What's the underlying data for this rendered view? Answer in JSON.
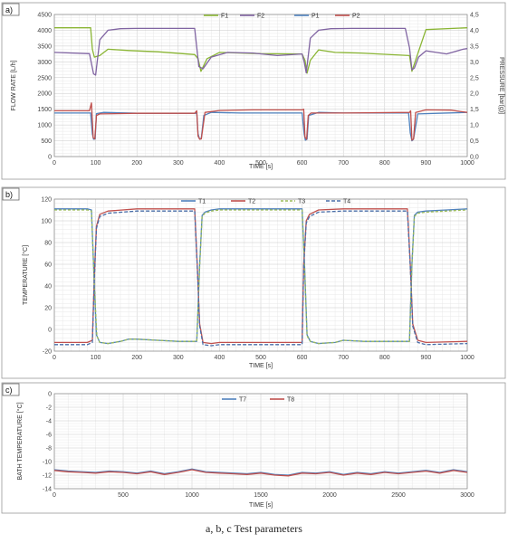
{
  "figure_caption": "a, b, c Test parameters",
  "chart_data": [
    {
      "panel_label": "a)",
      "type": "line",
      "xlabel": "TIME [s]",
      "ylabel": "FLOW RATE [L/h]",
      "y2label": "PRESSURE [bar(g)]",
      "xlim": [
        0,
        1000
      ],
      "ylim": [
        0,
        4500
      ],
      "y2lim": [
        0.0,
        4.5
      ],
      "xticks": [
        "0",
        "100",
        "200",
        "300",
        "400",
        "500",
        "600",
        "700",
        "800",
        "900",
        "1000"
      ],
      "yticks": [
        "0",
        "500",
        "1000",
        "1500",
        "2000",
        "2500",
        "3000",
        "3500",
        "4000",
        "4500"
      ],
      "y2ticks": [
        "0,0",
        "0,5",
        "1,0",
        "1,5",
        "2,0",
        "2,5",
        "3,0",
        "3,5",
        "4,0",
        "4,5"
      ],
      "grid": true,
      "legend_position": "top-center",
      "series": [
        {
          "name": "F1",
          "color": "#8ab534",
          "axis": "left",
          "x": [
            0,
            88,
            92,
            97,
            110,
            130,
            180,
            250,
            340,
            348,
            355,
            370,
            400,
            450,
            500,
            600,
            607,
            612,
            620,
            640,
            680,
            740,
            860,
            862,
            866,
            880,
            900,
            1000
          ],
          "y": [
            4080,
            4080,
            3400,
            3150,
            3200,
            3400,
            3360,
            3320,
            3230,
            3100,
            2700,
            3100,
            3300,
            3280,
            3260,
            3250,
            3050,
            2640,
            3050,
            3380,
            3300,
            3280,
            3200,
            3050,
            2700,
            3250,
            4020,
            4080
          ]
        },
        {
          "name": "F2",
          "color": "#8064a2",
          "axis": "left",
          "x": [
            0,
            85,
            90,
            95,
            100,
            110,
            130,
            160,
            200,
            340,
            345,
            350,
            360,
            380,
            420,
            480,
            540,
            600,
            605,
            610,
            620,
            640,
            670,
            720,
            800,
            850,
            860,
            866,
            872,
            882,
            900,
            950,
            990,
            1000
          ],
          "y": [
            3300,
            3260,
            2950,
            2620,
            2580,
            3700,
            4000,
            4050,
            4060,
            4060,
            3450,
            2850,
            2780,
            3150,
            3300,
            3280,
            3200,
            3250,
            3000,
            2650,
            3750,
            4000,
            4050,
            4060,
            4060,
            4060,
            3450,
            2750,
            2800,
            3150,
            3350,
            3250,
            3400,
            3420
          ]
        },
        {
          "name": "P1",
          "color": "#4f81bd",
          "axis": "right",
          "x": [
            0,
            88,
            92,
            95,
            99,
            102,
            120,
            200,
            345,
            348,
            352,
            356,
            362,
            380,
            450,
            600,
            605,
            608,
            612,
            616,
            640,
            700,
            858,
            862,
            866,
            870,
            880,
            1000
          ],
          "y": [
            1.38,
            1.38,
            0.72,
            0.55,
            0.56,
            1.36,
            1.4,
            1.37,
            1.37,
            0.72,
            0.55,
            0.58,
            1.3,
            1.4,
            1.38,
            1.38,
            0.72,
            0.52,
            0.55,
            1.3,
            1.4,
            1.38,
            1.38,
            0.75,
            0.5,
            0.55,
            1.35,
            1.4
          ]
        },
        {
          "name": "P2",
          "color": "#c0504d",
          "axis": "right",
          "x": [
            0,
            85,
            90,
            94,
            98,
            102,
            110,
            200,
            340,
            345,
            348,
            352,
            356,
            365,
            400,
            480,
            560,
            600,
            604,
            607,
            611,
            615,
            622,
            700,
            860,
            863,
            866,
            870,
            875,
            900,
            960,
            1000
          ],
          "y": [
            1.45,
            1.45,
            1.7,
            0.6,
            0.56,
            1.3,
            1.35,
            1.37,
            1.37,
            1.45,
            0.65,
            0.55,
            0.56,
            1.4,
            1.46,
            1.48,
            1.48,
            1.48,
            1.5,
            0.62,
            0.55,
            1.3,
            1.38,
            1.38,
            1.4,
            1.45,
            0.52,
            0.56,
            1.4,
            1.48,
            1.47,
            1.4
          ]
        }
      ]
    },
    {
      "panel_label": "b)",
      "type": "line",
      "xlabel": "TIME [s]",
      "ylabel": "TEMPERATURE [°C]",
      "xlim": [
        0,
        1000
      ],
      "ylim": [
        -20,
        120
      ],
      "xticks": [
        "0",
        "100",
        "200",
        "300",
        "400",
        "500",
        "600",
        "700",
        "800",
        "900",
        "1000"
      ],
      "yticks": [
        "-20",
        "0",
        "20",
        "40",
        "60",
        "80",
        "100",
        "120"
      ],
      "grid": true,
      "legend_position": "top-right",
      "series": [
        {
          "name": "T1",
          "color": "#4f81bd",
          "dash": "",
          "x": [
            0,
            80,
            90,
            97,
            102,
            110,
            130,
            160,
            180,
            200,
            250,
            300,
            345,
            352,
            358,
            365,
            380,
            400,
            600,
            606,
            612,
            620,
            640,
            680,
            700,
            750,
            860,
            866,
            872,
            880,
            900,
            950,
            1000
          ],
          "y": [
            111,
            111,
            110,
            40,
            -5,
            -12,
            -13,
            -11,
            -9,
            -9,
            -10,
            -11,
            -11,
            60,
            105,
            108,
            110,
            111,
            111,
            60,
            -5,
            -11,
            -13,
            -12,
            -10,
            -11,
            -11,
            60,
            105,
            108,
            109,
            110,
            111
          ]
        },
        {
          "name": "T2",
          "color": "#c0504d",
          "dash": "",
          "x": [
            0,
            80,
            92,
            97,
            102,
            110,
            130,
            200,
            340,
            346,
            352,
            360,
            380,
            400,
            500,
            600,
            604,
            610,
            618,
            640,
            700,
            800,
            855,
            862,
            868,
            880,
            900,
            1000
          ],
          "y": [
            -12,
            -12,
            -10,
            50,
            95,
            106,
            109,
            111,
            111,
            60,
            5,
            -12,
            -13,
            -12,
            -12,
            -12,
            60,
            100,
            106,
            110,
            111,
            111,
            111,
            60,
            5,
            -10,
            -12,
            -11
          ]
        },
        {
          "name": "T3",
          "color": "#9bbb59",
          "dash": "3,2",
          "x": [
            0,
            80,
            90,
            97,
            103,
            110,
            130,
            160,
            180,
            200,
            250,
            300,
            345,
            352,
            358,
            365,
            380,
            400,
            600,
            606,
            612,
            620,
            640,
            680,
            700,
            750,
            860,
            866,
            872,
            880,
            900,
            950,
            1000
          ],
          "y": [
            110,
            110,
            109,
            40,
            -6,
            -12,
            -13,
            -11,
            -9,
            -9,
            -10,
            -11,
            -11,
            58,
            104,
            107,
            109,
            110,
            110,
            58,
            -6,
            -11,
            -13,
            -12,
            -10,
            -11,
            -11,
            58,
            104,
            107,
            108,
            109,
            110
          ]
        },
        {
          "name": "T4",
          "color": "#4a6ea8",
          "dash": "4,2",
          "x": [
            0,
            80,
            92,
            97,
            102,
            110,
            130,
            200,
            340,
            346,
            352,
            360,
            380,
            400,
            500,
            600,
            604,
            610,
            618,
            640,
            700,
            800,
            855,
            862,
            868,
            880,
            900,
            1000
          ],
          "y": [
            -14,
            -14,
            -12,
            48,
            93,
            104,
            107,
            109,
            109,
            58,
            3,
            -14,
            -15,
            -14,
            -14,
            -14,
            58,
            98,
            104,
            108,
            109,
            109,
            109,
            58,
            3,
            -12,
            -14,
            -13
          ]
        }
      ]
    },
    {
      "panel_label": "c)",
      "type": "line",
      "xlabel": "TIME [s]",
      "ylabel": "BATH TEMPERATURE [°C]",
      "xlim": [
        0,
        3000
      ],
      "ylim": [
        -14,
        0
      ],
      "xticks": [
        "0",
        "500",
        "1000",
        "1500",
        "2000",
        "2500",
        "3000"
      ],
      "yticks": [
        "-14",
        "-12",
        "-10",
        "-8",
        "-6",
        "-4",
        "-2",
        "0"
      ],
      "grid": true,
      "legend_position": "top-center",
      "series": [
        {
          "name": "T7",
          "color": "#4f81bd",
          "x": [
            0,
            100,
            200,
            300,
            400,
            500,
            600,
            700,
            800,
            900,
            1000,
            1100,
            1200,
            1300,
            1400,
            1500,
            1600,
            1700,
            1800,
            1900,
            2000,
            2100,
            2200,
            2300,
            2400,
            2500,
            2600,
            2700,
            2800,
            2900,
            3000
          ],
          "y": [
            -11.2,
            -11.4,
            -11.5,
            -11.6,
            -11.4,
            -11.5,
            -11.7,
            -11.4,
            -11.8,
            -11.5,
            -11.1,
            -11.5,
            -11.6,
            -11.7,
            -11.8,
            -11.6,
            -11.9,
            -12.0,
            -11.6,
            -11.7,
            -11.5,
            -11.9,
            -11.6,
            -11.8,
            -11.5,
            -11.7,
            -11.5,
            -11.3,
            -11.6,
            -11.2,
            -11.5
          ]
        },
        {
          "name": "T8",
          "color": "#c0504d",
          "x": [
            0,
            100,
            200,
            300,
            400,
            500,
            600,
            700,
            800,
            900,
            1000,
            1100,
            1200,
            1300,
            1400,
            1500,
            1600,
            1700,
            1800,
            1900,
            2000,
            2100,
            2200,
            2300,
            2400,
            2500,
            2600,
            2700,
            2800,
            2900,
            3000
          ],
          "y": [
            -11.3,
            -11.5,
            -11.6,
            -11.7,
            -11.5,
            -11.6,
            -11.8,
            -11.5,
            -11.9,
            -11.6,
            -11.2,
            -11.6,
            -11.7,
            -11.8,
            -11.9,
            -11.7,
            -12.0,
            -12.1,
            -11.7,
            -11.8,
            -11.6,
            -12.0,
            -11.7,
            -11.9,
            -11.6,
            -11.8,
            -11.6,
            -11.4,
            -11.7,
            -11.3,
            -11.6
          ]
        }
      ]
    }
  ]
}
